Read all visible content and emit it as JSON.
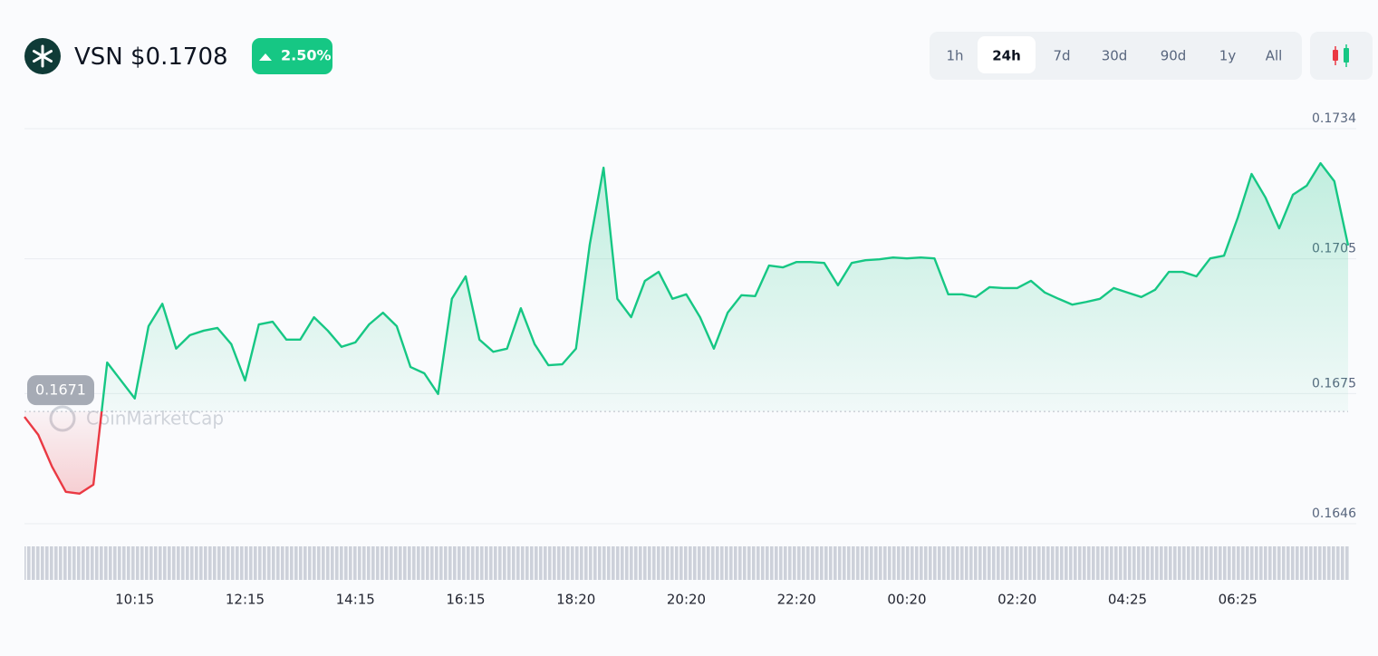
{
  "header": {
    "symbol": "VSN",
    "price": "$0.1708",
    "change": "2.50%"
  },
  "range_buttons": {
    "labels": [
      "1h",
      "24h",
      "7d",
      "30d",
      "90d",
      "1y",
      "All"
    ],
    "selected": 1
  },
  "chart_data": {
    "type": "line",
    "watermark": "CoinMarketCap",
    "series": [
      {
        "name": "VSN",
        "color": "#16c784",
        "values": [
          0.16698,
          0.16658,
          0.16587,
          0.16531,
          0.16527,
          0.16547,
          0.16819,
          0.16779,
          0.16739,
          0.169,
          0.1695,
          0.1685,
          0.1688,
          0.1689,
          0.16896,
          0.1686,
          0.16779,
          0.16904,
          0.1691,
          0.1687,
          0.1687,
          0.1692,
          0.1689,
          0.16854,
          0.16864,
          0.16904,
          0.1693,
          0.169,
          0.16809,
          0.16795,
          0.16749,
          0.16961,
          0.17011,
          0.1687,
          0.16843,
          0.1685,
          0.1694,
          0.1686,
          0.16813,
          0.16815,
          0.1685,
          0.17082,
          0.17253,
          0.16961,
          0.1692,
          0.17001,
          0.17021,
          0.16961,
          0.16971,
          0.1692,
          0.1685,
          0.1693,
          0.16969,
          0.16967,
          0.17035,
          0.17031,
          0.17043,
          0.17043,
          0.17041,
          0.16991,
          0.17041,
          0.17047,
          0.17049,
          0.17053,
          0.17051,
          0.17053,
          0.17051,
          0.16971,
          0.16971,
          0.16965,
          0.16987,
          0.16985,
          0.16985,
          0.17001,
          0.16975,
          0.16961,
          0.16948,
          0.16954,
          0.16961,
          0.16985,
          0.16975,
          0.16965,
          0.16981,
          0.17021,
          0.17021,
          0.17011,
          0.17051,
          0.17057,
          0.17142,
          0.17239,
          0.17187,
          0.17118,
          0.17193,
          0.17213,
          0.17263,
          0.17223,
          0.1708
        ]
      }
    ],
    "down_color": "#ea3943",
    "reference_line": 0.1671,
    "xlim": [
      0,
      96
    ],
    "xticks": [
      {
        "value": 8,
        "label": "10:15"
      },
      {
        "value": 16,
        "label": "12:15"
      },
      {
        "value": 24,
        "label": "14:15"
      },
      {
        "value": 32,
        "label": "16:15"
      },
      {
        "value": 40,
        "label": "18:20"
      },
      {
        "value": 48,
        "label": "20:20"
      },
      {
        "value": 56,
        "label": "22:20"
      },
      {
        "value": 64,
        "label": "00:20"
      },
      {
        "value": 72,
        "label": "02:20"
      },
      {
        "value": 80,
        "label": "04:25"
      },
      {
        "value": 88,
        "label": "06:25"
      }
    ],
    "ylim": [
      0.1646,
      0.1734
    ],
    "yticks": [
      0.1646,
      0.1675,
      0.1705,
      0.1734
    ],
    "grid": true
  }
}
